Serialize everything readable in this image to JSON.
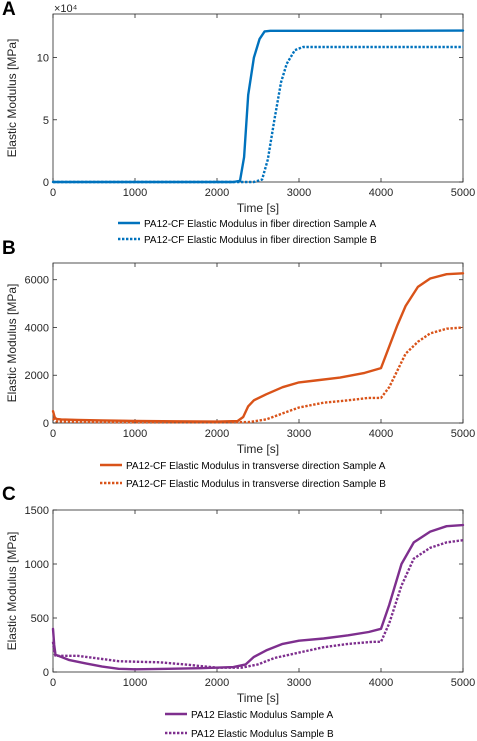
{
  "chart_data": [
    {
      "panel_label": "A",
      "type": "line",
      "xlabel": "Time [s]",
      "ylabel": "Elastic Modulus [MPa]",
      "y_multiplier_label": "×10⁴",
      "xlim": [
        0,
        5000
      ],
      "ylim": [
        0,
        135000
      ],
      "xticks": [
        0,
        1000,
        2000,
        3000,
        4000,
        5000
      ],
      "yticks": [
        0,
        50000,
        100000
      ],
      "ytick_labels": [
        "0",
        "5",
        "10"
      ],
      "grid": false,
      "legend_position": "below",
      "series": [
        {
          "name": "PA12-CF Elastic Modulus in fiber direction Sample A",
          "color": "#0072BD",
          "style": "solid",
          "x": [
            0,
            2200,
            2280,
            2330,
            2380,
            2450,
            2520,
            2580,
            2650,
            3000,
            4000,
            5000
          ],
          "y": [
            0,
            0,
            1000,
            20000,
            70000,
            100000,
            115000,
            121000,
            121500,
            121500,
            121500,
            121700
          ]
        },
        {
          "name": "PA12-CF Elastic Modulus in fiber direction Sample B",
          "color": "#0072BD",
          "style": "dotted",
          "x": [
            0,
            2450,
            2550,
            2620,
            2700,
            2780,
            2850,
            2950,
            3050,
            3200,
            4000,
            5000
          ],
          "y": [
            0,
            0,
            2000,
            18000,
            50000,
            80000,
            95000,
            106000,
            108500,
            108500,
            108500,
            108500
          ]
        }
      ]
    },
    {
      "panel_label": "B",
      "type": "line",
      "xlabel": "Time [s]",
      "ylabel": "Elastic Modulus [MPa]",
      "xlim": [
        0,
        5000
      ],
      "ylim": [
        0,
        6700
      ],
      "xticks": [
        0,
        1000,
        2000,
        3000,
        4000,
        5000
      ],
      "yticks": [
        0,
        2000,
        4000,
        6000
      ],
      "grid": false,
      "legend_position": "below",
      "series": [
        {
          "name": "PA12-CF Elastic Modulus in transverse direction Sample A",
          "color": "#D95319",
          "style": "solid",
          "x": [
            0,
            20,
            40,
            100,
            300,
            600,
            1000,
            1500,
            2000,
            2250,
            2320,
            2380,
            2450,
            2600,
            2800,
            3000,
            3200,
            3500,
            3800,
            4000,
            4100,
            4200,
            4300,
            4450,
            4600,
            4800,
            5000
          ],
          "y": [
            500,
            250,
            170,
            150,
            130,
            110,
            90,
            70,
            60,
            80,
            250,
            700,
            950,
            1200,
            1500,
            1700,
            1780,
            1900,
            2100,
            2300,
            3200,
            4100,
            4900,
            5700,
            6050,
            6230,
            6270
          ]
        },
        {
          "name": "PA12-CF Elastic Modulus in transverse direction Sample B",
          "color": "#D95319",
          "style": "dotted",
          "x": [
            0,
            20,
            40,
            100,
            500,
            1000,
            2000,
            2400,
            2600,
            2800,
            3000,
            3300,
            3600,
            3850,
            4000,
            4100,
            4200,
            4300,
            4450,
            4600,
            4800,
            5000
          ],
          "y": [
            200,
            120,
            70,
            60,
            40,
            30,
            30,
            40,
            150,
            400,
            650,
            850,
            950,
            1050,
            1050,
            1500,
            2200,
            2900,
            3400,
            3750,
            3950,
            4000
          ]
        }
      ]
    },
    {
      "panel_label": "C",
      "type": "line",
      "xlabel": "Time [s]",
      "ylabel": "Elastic Modulus [MPa]",
      "xlim": [
        0,
        5000
      ],
      "ylim": [
        0,
        1500
      ],
      "xticks": [
        0,
        1000,
        2000,
        3000,
        4000,
        5000
      ],
      "yticks": [
        0,
        500,
        1000,
        1500
      ],
      "grid": false,
      "legend_position": "below",
      "series": [
        {
          "name": "PA12 Elastic Modulus Sample A",
          "color": "#7E2F8E",
          "style": "solid",
          "x": [
            0,
            15,
            30,
            100,
            200,
            400,
            600,
            800,
            1000,
            1400,
            1800,
            2200,
            2350,
            2450,
            2600,
            2800,
            3000,
            3300,
            3600,
            3850,
            4000,
            4100,
            4250,
            4400,
            4600,
            4800,
            5000
          ],
          "y": [
            400,
            250,
            160,
            140,
            110,
            80,
            50,
            30,
            25,
            30,
            35,
            45,
            70,
            140,
            200,
            260,
            290,
            310,
            340,
            370,
            400,
            620,
            1000,
            1200,
            1300,
            1350,
            1360
          ]
        },
        {
          "name": "PA12 Elastic Modulus Sample B",
          "color": "#7E2F8E",
          "style": "dotted",
          "x": [
            0,
            15,
            30,
            100,
            300,
            600,
            800,
            1000,
            1300,
            1600,
            2000,
            2300,
            2500,
            2700,
            3000,
            3300,
            3600,
            3900,
            4000,
            4100,
            4250,
            4400,
            4600,
            4800,
            5000
          ],
          "y": [
            280,
            180,
            150,
            150,
            150,
            120,
            100,
            95,
            90,
            70,
            40,
            40,
            70,
            130,
            180,
            230,
            260,
            280,
            280,
            450,
            800,
            1050,
            1150,
            1200,
            1220
          ]
        }
      ]
    }
  ]
}
